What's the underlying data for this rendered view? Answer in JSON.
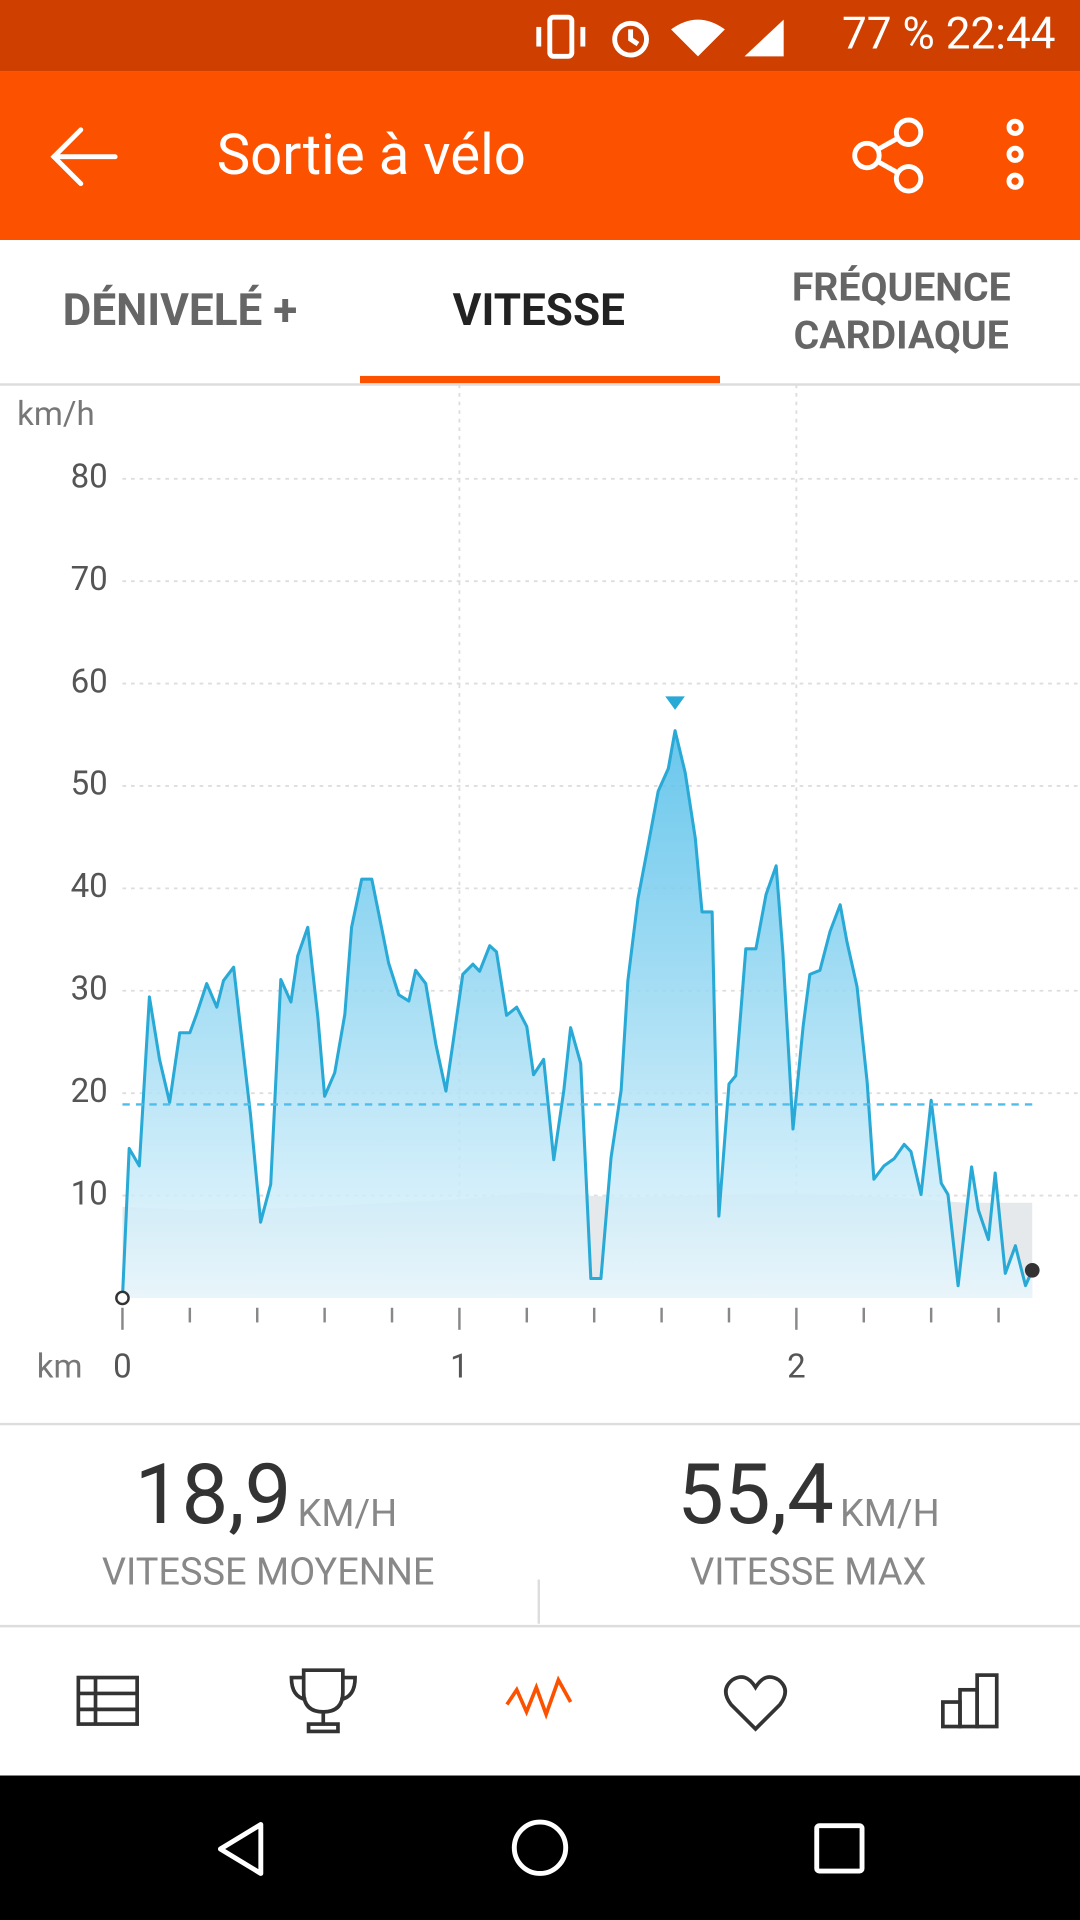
{
  "status_bar": {
    "battery": "77 %",
    "time": "22:44"
  },
  "app_bar": {
    "title": "Sortie à vélo"
  },
  "tabs": [
    [
      "DÉNIVELÉ +"
    ],
    [
      "VITESSE"
    ],
    [
      "FRÉQUENCE",
      "CARDIAQUE"
    ]
  ],
  "chart_data": {
    "type": "area",
    "y_unit": "km/h",
    "x_unit": "km",
    "xlim": [
      0,
      2.7
    ],
    "ylim": [
      0,
      80
    ],
    "xticks": [
      0,
      1,
      2
    ],
    "xminor": [
      0.2,
      0.4,
      0.6,
      0.8,
      1.2,
      1.4,
      1.6,
      1.8,
      2.2,
      2.4,
      2.6
    ],
    "yticks": [
      10,
      20,
      30,
      40,
      50,
      60,
      70,
      80
    ],
    "grid": true,
    "average": 18.9,
    "max": 55.4,
    "series": [
      {
        "color": "#29a9d6",
        "x": [
          0,
          0.02,
          0.05,
          0.08,
          0.11,
          0.14,
          0.17,
          0.2,
          0.22,
          0.25,
          0.28,
          0.3,
          0.33,
          0.35,
          0.38,
          0.41,
          0.44,
          0.47,
          0.5,
          0.52,
          0.55,
          0.58,
          0.6,
          0.63,
          0.66,
          0.68,
          0.71,
          0.74,
          0.77,
          0.79,
          0.82,
          0.85,
          0.87,
          0.9,
          0.93,
          0.96,
          0.98,
          1.01,
          1.04,
          1.06,
          1.09,
          1.11,
          1.14,
          1.17,
          1.2,
          1.22,
          1.25,
          1.28,
          1.31,
          1.33,
          1.36,
          1.39,
          1.42,
          1.45,
          1.48,
          1.5,
          1.53,
          1.56,
          1.59,
          1.62,
          1.64,
          1.67,
          1.7,
          1.72,
          1.75,
          1.77,
          1.8,
          1.82,
          1.85,
          1.88,
          1.91,
          1.94,
          1.96,
          1.99,
          2.02,
          2.04,
          2.07,
          2.1,
          2.13,
          2.15,
          2.18,
          2.21,
          2.23,
          2.26,
          2.29,
          2.32,
          2.34,
          2.37,
          2.4,
          2.43,
          2.45,
          2.48,
          2.52,
          2.54,
          2.57,
          2.59,
          2.62,
          2.65,
          2.68,
          2.7
        ],
        "values": [
          0,
          14.6,
          12.9,
          29.4,
          23.3,
          19.1,
          25.9,
          25.9,
          27.7,
          30.7,
          28.4,
          31,
          32.3,
          26.5,
          17.9,
          7.4,
          11.1,
          31.1,
          28.9,
          33.4,
          36.2,
          27.4,
          19.7,
          22,
          27.7,
          36.2,
          40.9,
          40.9,
          36,
          32.7,
          29.6,
          29,
          32,
          30.7,
          24.8,
          20.2,
          24.7,
          31.6,
          32.6,
          31.9,
          34.4,
          33.8,
          27.6,
          28.4,
          26.5,
          21.8,
          23.3,
          13.5,
          20.3,
          26.4,
          22.9,
          1.9,
          1.9,
          13.7,
          20.3,
          31,
          39,
          44.2,
          49.5,
          51.7,
          55.4,
          51.3,
          44.9,
          37.7,
          37.7,
          8,
          20.9,
          21.7,
          34.1,
          34.1,
          39.4,
          42.2,
          33.7,
          16.5,
          26.5,
          31.6,
          32,
          35.8,
          38.4,
          34.8,
          30.4,
          21.1,
          11.6,
          12.9,
          13.6,
          15,
          14.3,
          10.1,
          19.3,
          11.2,
          10.1,
          1.2,
          12.8,
          8.6,
          5.7,
          12.2,
          2.4,
          5.1,
          1.2,
          2.7
        ]
      },
      {
        "color": "#e6e9ec",
        "x": [
          0,
          0.2,
          0.5,
          0.8,
          1,
          1.2,
          1.5,
          1.8,
          2,
          2.3,
          2.5,
          2.7
        ],
        "values": [
          8.9,
          8.6,
          8.8,
          9.3,
          9.6,
          10.3,
          9.8,
          10.1,
          10.2,
          9.8,
          9.3,
          9.3
        ]
      }
    ]
  },
  "stats": [
    {
      "value": "18,9",
      "unit": "KM/H",
      "label": "VITESSE MOYENNE"
    },
    {
      "value": "55,4",
      "unit": "KM/H",
      "label": "VITESSE MAX"
    }
  ]
}
